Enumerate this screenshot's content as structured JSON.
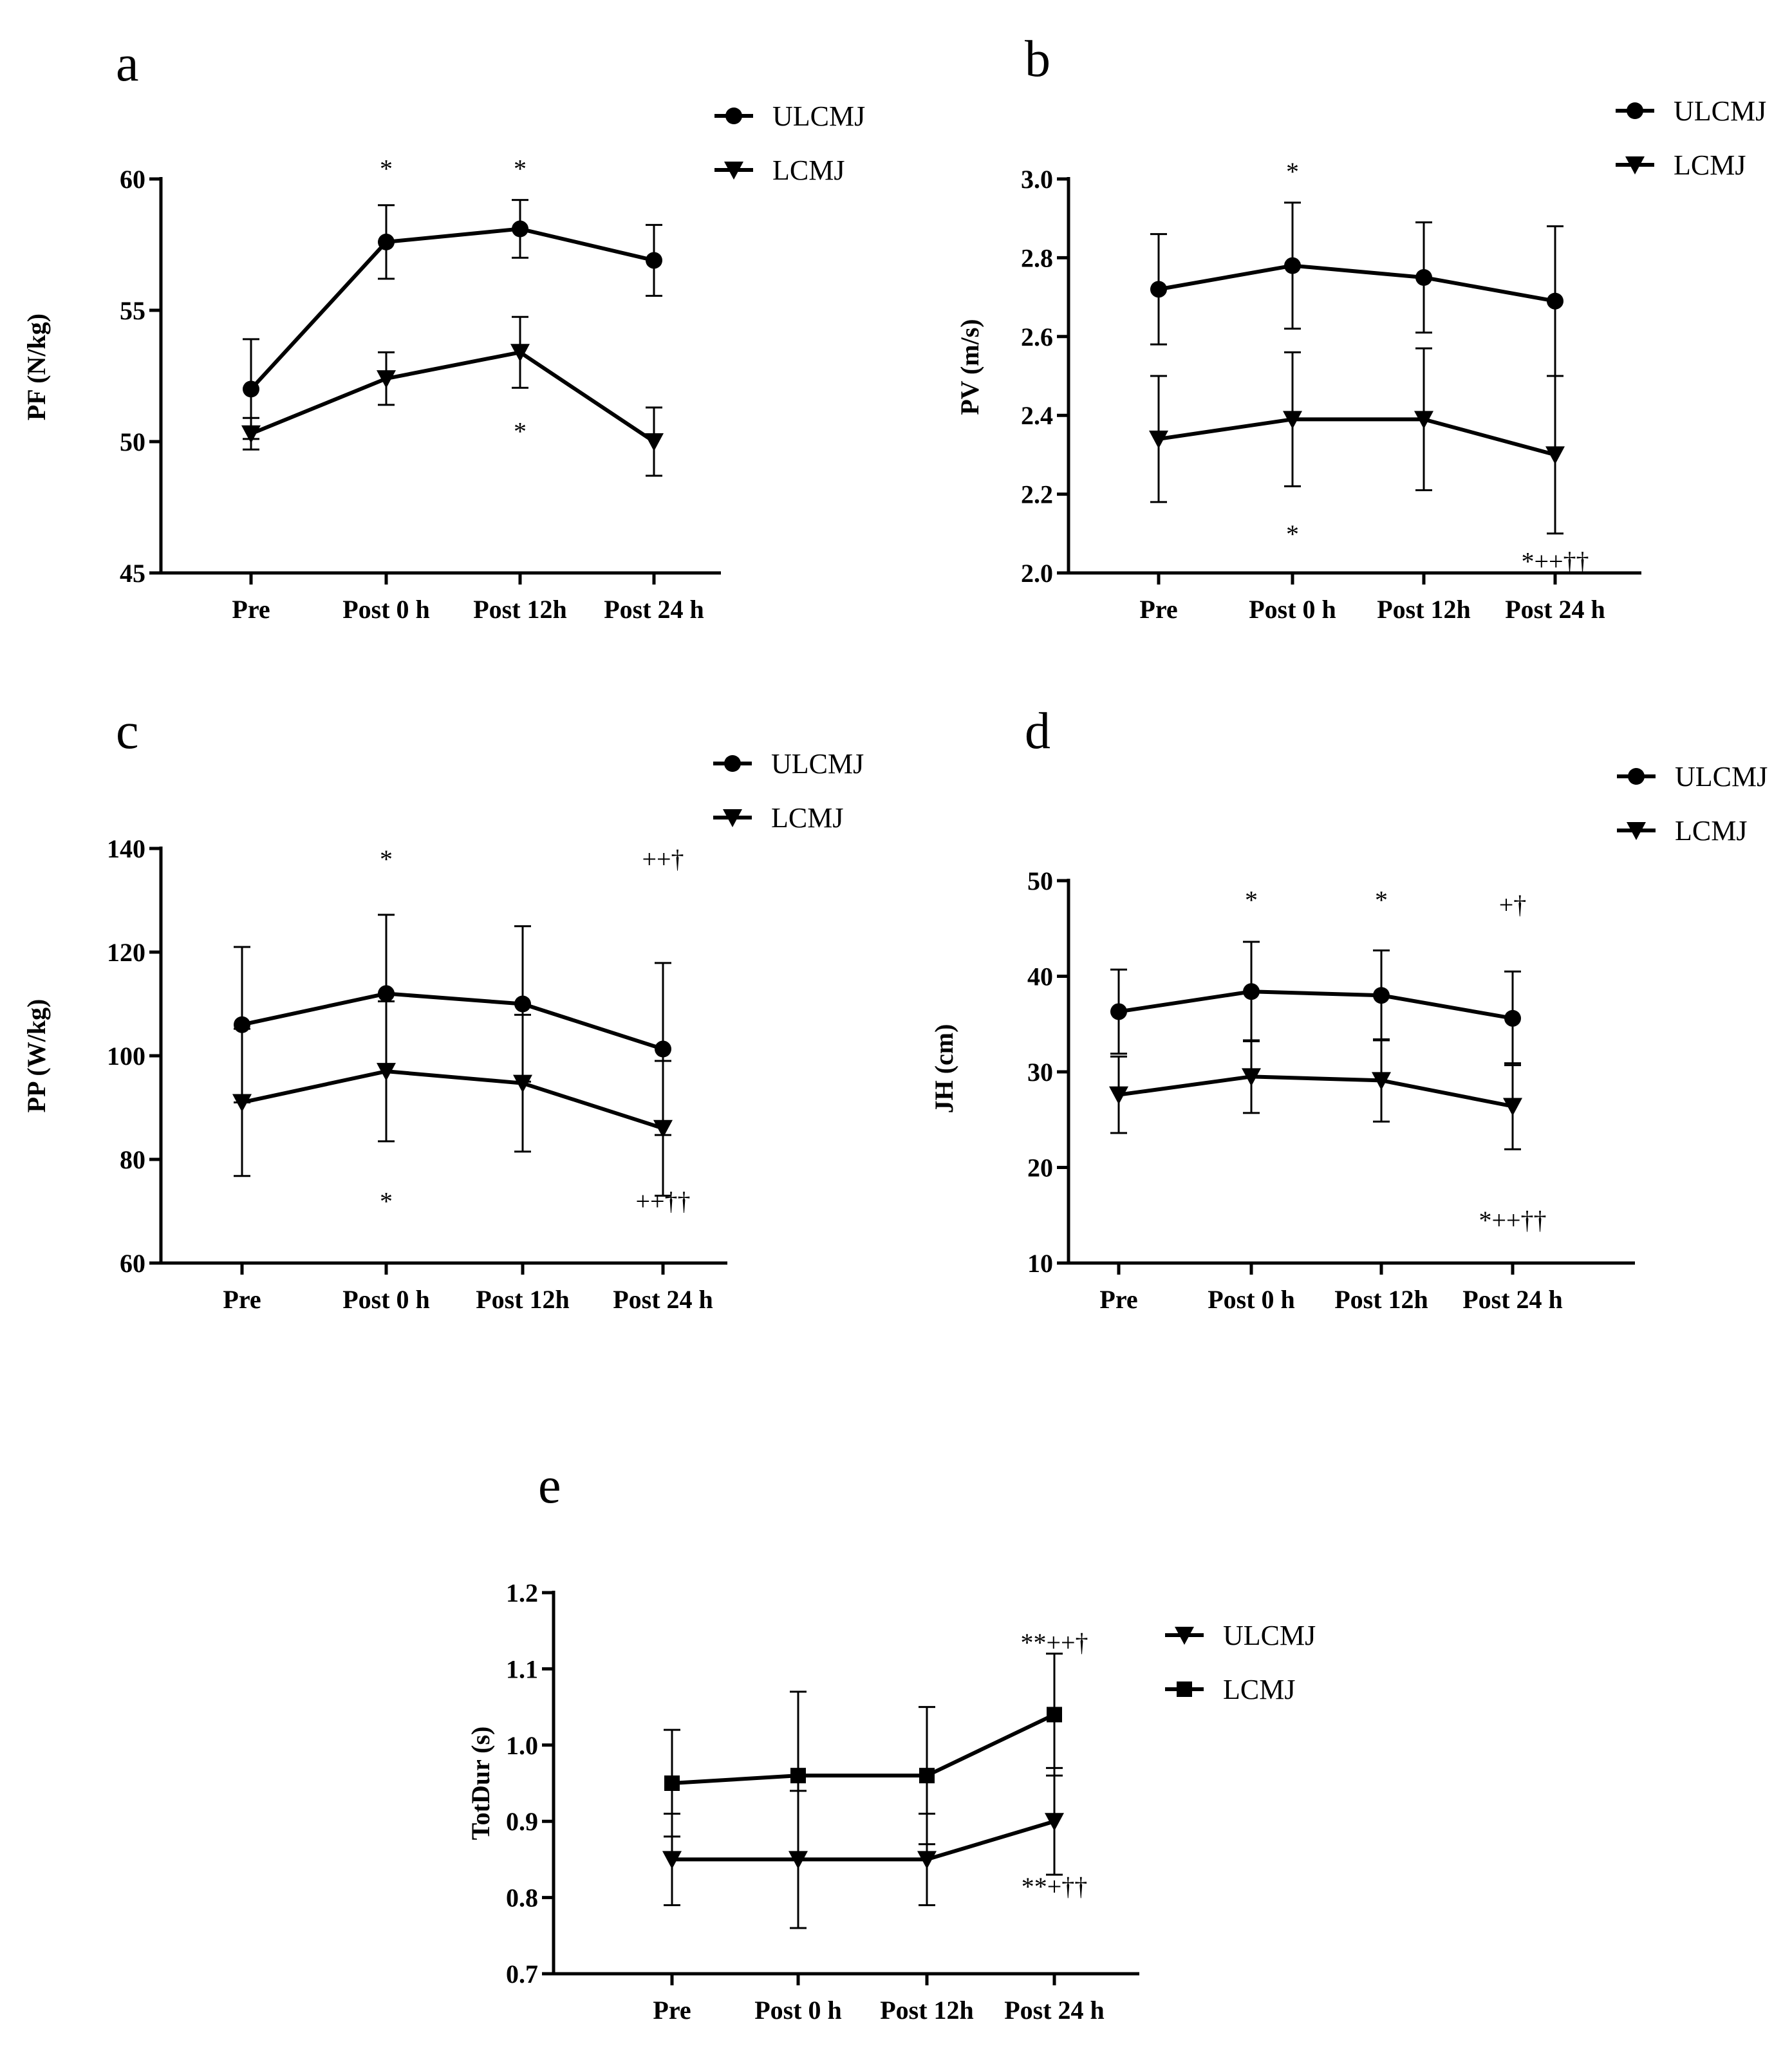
{
  "chart_data": [
    {
      "type": "line",
      "panel": "a",
      "title": "",
      "xlabel": "",
      "ylabel": "PF (N/kg)",
      "categories": [
        "Pre",
        "Post 0 h",
        "Post 12h",
        "Post 24 h"
      ],
      "ylim": [
        45,
        60
      ],
      "yticks": [
        45,
        50,
        55,
        60
      ],
      "ytick_labels": [
        "45",
        "50",
        "55",
        "60"
      ],
      "legend": "top-right",
      "series": [
        {
          "name": "ULCMJ",
          "marker": "circle",
          "values": [
            52.0,
            57.6,
            58.1,
            56.9
          ],
          "err": [
            1.9,
            1.4,
            1.1,
            1.35
          ]
        },
        {
          "name": "LCMJ",
          "marker": "triangle-down",
          "values": [
            50.3,
            52.4,
            53.4,
            50.0
          ],
          "err": [
            0.6,
            1.0,
            1.35,
            1.3
          ]
        }
      ],
      "annotations": [
        {
          "text": "*",
          "category": "Post 0 h",
          "y": 60.4
        },
        {
          "text": "*",
          "category": "Post 12h",
          "y": 60.4
        },
        {
          "text": "*",
          "category": "Post 12h",
          "y": 50.4
        }
      ]
    },
    {
      "type": "line",
      "panel": "b",
      "title": "",
      "xlabel": "",
      "ylabel": "PV (m/s)",
      "categories": [
        "Pre",
        "Post 0 h",
        "Post 12h",
        "Post 24 h"
      ],
      "ylim": [
        2.0,
        3.0
      ],
      "yticks": [
        2.0,
        2.2,
        2.4,
        2.6,
        2.8,
        3.0
      ],
      "ytick_labels": [
        "2.0",
        "2.2",
        "2.4",
        "2.6",
        "2.8",
        "3.0"
      ],
      "legend": "top-right",
      "series": [
        {
          "name": "ULCMJ",
          "marker": "circle",
          "values": [
            2.72,
            2.78,
            2.75,
            2.69
          ],
          "err": [
            0.14,
            0.16,
            0.14,
            0.19
          ]
        },
        {
          "name": "LCMJ",
          "marker": "triangle-down",
          "values": [
            2.34,
            2.39,
            2.39,
            2.3
          ],
          "err": [
            0.16,
            0.17,
            0.18,
            0.2
          ]
        }
      ],
      "annotations": [
        {
          "text": "*",
          "category": "Post 0 h",
          "y": 3.02
        },
        {
          "text": "*",
          "category": "Post 0 h",
          "y": 2.1
        },
        {
          "text": "*++††",
          "category": "Post 24 h",
          "y": 2.03
        }
      ]
    },
    {
      "type": "line",
      "panel": "c",
      "title": "",
      "xlabel": "",
      "ylabel": "PP (W/kg)",
      "categories": [
        "Pre",
        "Post 0 h",
        "Post 12h",
        "Post 24 h"
      ],
      "ylim": [
        60,
        140
      ],
      "yticks": [
        60,
        80,
        100,
        120,
        140
      ],
      "ytick_labels": [
        "60",
        "80",
        "100",
        "120",
        "140"
      ],
      "legend": "top-right",
      "series": [
        {
          "name": "ULCMJ",
          "marker": "circle",
          "values": [
            106,
            112,
            110,
            101.3
          ],
          "err": [
            15,
            15.2,
            15,
            16.6
          ]
        },
        {
          "name": "LCMJ",
          "marker": "triangle-down",
          "values": [
            91,
            97,
            94.7,
            86
          ],
          "err": [
            14.2,
            13.5,
            13.2,
            13
          ]
        }
      ],
      "annotations": [
        {
          "text": "*",
          "category": "Post 0 h",
          "y": 138
        },
        {
          "text": "++†",
          "category": "Post 24 h",
          "y": 138
        },
        {
          "text": "*",
          "category": "Post 0 h",
          "y": 72
        },
        {
          "text": "++††",
          "category": "Post 24 h",
          "y": 72
        }
      ]
    },
    {
      "type": "line",
      "panel": "d",
      "title": "",
      "xlabel": "",
      "ylabel": "JH (cm)",
      "categories": [
        "Pre",
        "Post 0 h",
        "Post 12h",
        "Post 24 h"
      ],
      "ylim": [
        10,
        50
      ],
      "yticks": [
        10,
        20,
        30,
        40,
        50
      ],
      "ytick_labels": [
        "10",
        "20",
        "30",
        "40",
        "50"
      ],
      "legend": "top-right",
      "series": [
        {
          "name": "ULCMJ",
          "marker": "circle",
          "values": [
            36.3,
            38.4,
            38.0,
            35.6
          ],
          "err": [
            4.4,
            5.2,
            4.7,
            4.9
          ]
        },
        {
          "name": "LCMJ",
          "marker": "triangle-down",
          "values": [
            27.6,
            29.5,
            29.1,
            26.4
          ],
          "err": [
            4.0,
            3.8,
            4.3,
            4.5
          ]
        }
      ],
      "annotations": [
        {
          "text": "*",
          "category": "Post 0 h",
          "y": 48
        },
        {
          "text": "*",
          "category": "Post 12h",
          "y": 48
        },
        {
          "text": "+†",
          "category": "Post 24 h",
          "y": 47.5
        },
        {
          "text": "*++††",
          "category": "Post 24 h",
          "y": 14.5
        }
      ]
    },
    {
      "type": "line",
      "panel": "e",
      "title": "",
      "xlabel": "",
      "ylabel": "TotDur (s)",
      "categories": [
        "Pre",
        "Post 0 h",
        "Post 12h",
        "Post 24 h"
      ],
      "ylim": [
        0.7,
        1.2
      ],
      "yticks": [
        0.7,
        0.8,
        0.9,
        1.0,
        1.1,
        1.2
      ],
      "ytick_labels": [
        "0.7",
        "0.8",
        "0.9",
        "1.0",
        "1.1",
        "1.2"
      ],
      "legend": "top-right",
      "series": [
        {
          "name": "ULCMJ",
          "marker": "triangle-down",
          "values": [
            0.85,
            0.85,
            0.85,
            0.9
          ],
          "err": [
            0.06,
            0.09,
            0.06,
            0.07
          ]
        },
        {
          "name": "LCMJ",
          "marker": "square",
          "values": [
            0.95,
            0.96,
            0.96,
            1.04
          ],
          "err": [
            0.07,
            0.11,
            0.09,
            0.08
          ]
        }
      ],
      "annotations": [
        {
          "text": "**++†",
          "category": "Post 24 h",
          "y": 1.135
        },
        {
          "text": "**+††",
          "category": "Post 24 h",
          "y": 0.815
        }
      ]
    }
  ]
}
